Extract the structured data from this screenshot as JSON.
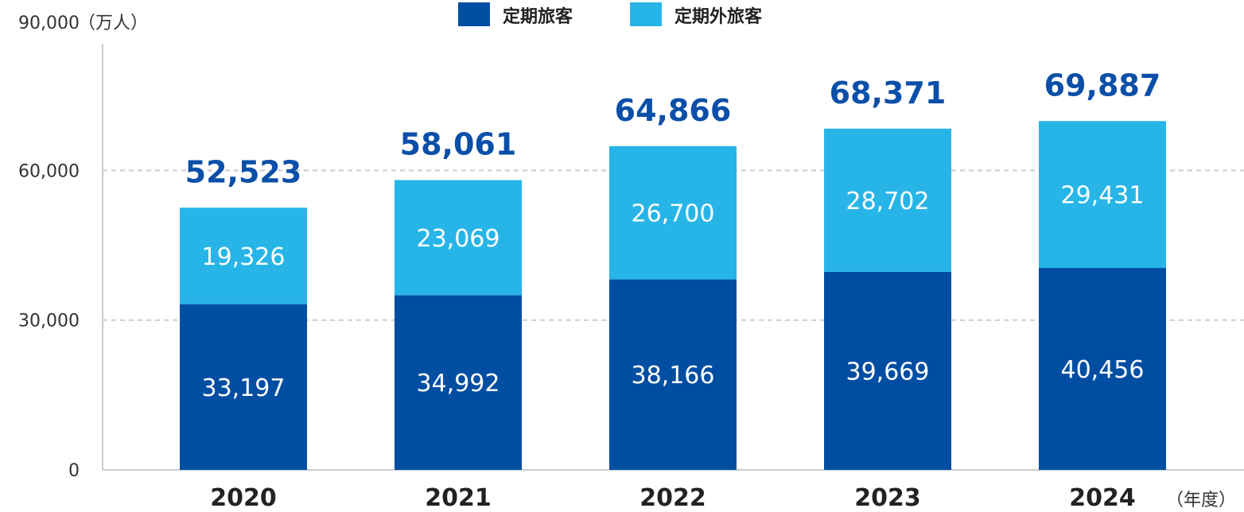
{
  "chart_data": {
    "type": "bar",
    "stacked": true,
    "categories": [
      "2020",
      "2021",
      "2022",
      "2023",
      "2024"
    ],
    "series": [
      {
        "name": "定期旅客",
        "color": "#004ea2",
        "values": [
          33197,
          34992,
          38166,
          39669,
          40456
        ]
      },
      {
        "name": "定期外旅客",
        "color": "#27b5e8",
        "values": [
          19326,
          23069,
          26700,
          28702,
          29431
        ]
      }
    ],
    "totals": [
      "52,523",
      "58,061",
      "64,866",
      "68,371",
      "69,887"
    ],
    "totals_values": [
      52523,
      58061,
      64866,
      68371,
      69887
    ],
    "series_labels": [
      [
        "33,197",
        "34,992",
        "38,166",
        "39,669",
        "40,456"
      ],
      [
        "19,326",
        "23,069",
        "26,700",
        "28,702",
        "29,431"
      ]
    ],
    "y_ticks": [
      0,
      30000,
      60000,
      90000
    ],
    "y_tick_labels": [
      "0",
      "30,000",
      "60,000",
      "90,000"
    ],
    "ylim": [
      0,
      90000
    ],
    "y_unit": "（万人）",
    "x_unit": "（年度）",
    "legend_position": "top-center",
    "grid": "dashed horizontal",
    "total_label_color": "#0a4fa8"
  }
}
